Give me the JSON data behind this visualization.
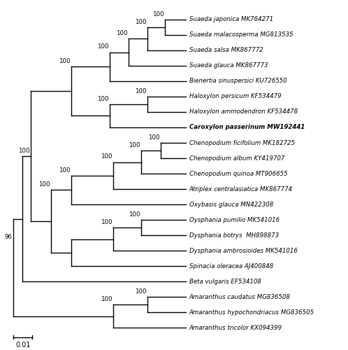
{
  "taxa": [
    {
      "y": 21,
      "species": "Suaeda japonica",
      "accession": "MK764271",
      "bold": false
    },
    {
      "y": 20,
      "species": "Suaeda malacosperma",
      "accession": "MG813535",
      "bold": false
    },
    {
      "y": 19,
      "species": "Suaeda salsa",
      "accession": "MK867772",
      "bold": false
    },
    {
      "y": 18,
      "species": "Suaeda glauca",
      "accession": "MK867773",
      "bold": false
    },
    {
      "y": 17,
      "species": "Bienertia sinuspersici",
      "accession": "KU726550",
      "bold": false
    },
    {
      "y": 16,
      "species": "Haloxylon persicum",
      "accession": "KF534479",
      "bold": false
    },
    {
      "y": 15,
      "species": "Haloxylon ammodendron",
      "accession": "KF534478",
      "bold": false
    },
    {
      "y": 14,
      "species": "Caroxylon passerinum",
      "accession": "MW192441",
      "bold": true
    },
    {
      "y": 13,
      "species": "Chenopodium ficifolium",
      "accession": "MK182725",
      "bold": false
    },
    {
      "y": 12,
      "species": "Chenopodium album",
      "accession": "KY419707",
      "bold": false
    },
    {
      "y": 11,
      "species": "Chenopodium quinoa",
      "accession": "MT906655",
      "bold": false
    },
    {
      "y": 10,
      "species": "Atriplex centralasiatica",
      "accession": "MK867774",
      "bold": false
    },
    {
      "y": 9,
      "species": "Oxybasis glauca",
      "accession": "MN422308",
      "bold": false
    },
    {
      "y": 8,
      "species": "Oysphania pumilio",
      "accession": "MK541016",
      "bold": false
    },
    {
      "y": 7,
      "species": "Dysphania botrys ",
      "accession": "MH898873",
      "bold": false
    },
    {
      "y": 6,
      "species": "Dysphania ambrosioides",
      "accession": "MK541016",
      "bold": false
    },
    {
      "y": 5,
      "species": "Spinacia oleracea",
      "accession": "AJ400848",
      "bold": false
    },
    {
      "y": 4,
      "species": "Beta vulgaris",
      "accession": "EF534108",
      "bold": false
    },
    {
      "y": 3,
      "species": "Amaranthus caudatus",
      "accession": "MG836508",
      "bold": false
    },
    {
      "y": 2,
      "species": "Amaranthus hypochondriacus",
      "accession": "MG836505",
      "bold": false
    },
    {
      "y": 1,
      "species": "Amaranthus tricolor",
      "accession": "KX094399",
      "bold": false
    }
  ],
  "figsize": [
    4.98,
    5.0
  ],
  "dpi": 100,
  "taxa_fontsize": 6.2,
  "bs_fontsize": 6.2,
  "lw": 1.0
}
